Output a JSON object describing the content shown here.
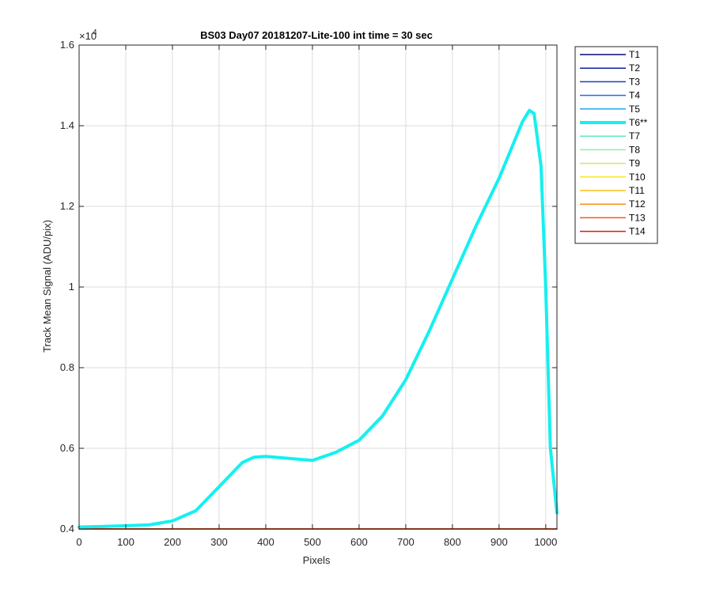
{
  "chart_data": {
    "type": "line",
    "title": "BS03 Day07 20181207-Lite-100 int time = 30 sec",
    "xlabel": "Pixels",
    "ylabel": "Track Mean Signal (ADU/pix)",
    "xlim": [
      0,
      1024
    ],
    "ylim": [
      4000,
      16000
    ],
    "xticks": [
      0,
      100,
      200,
      300,
      400,
      500,
      600,
      700,
      800,
      900,
      1000
    ],
    "xtick_labels": [
      "0",
      "100",
      "200",
      "300",
      "400",
      "500",
      "600",
      "700",
      "800",
      "900",
      "1000"
    ],
    "yticks": [
      4000,
      6000,
      8000,
      10000,
      12000,
      14000,
      16000
    ],
    "ytick_labels": [
      "0.4",
      "0.6",
      "0.8",
      "1",
      "1.2",
      "1.4",
      "1.6"
    ],
    "y_exponent": "×10",
    "y_exponent_power": "4",
    "grid": true,
    "legend_position": "outside-right-top",
    "series": [
      {
        "name": "T1",
        "color": "#0a0a7a",
        "width": 1.5,
        "x": [
          0,
          1024
        ],
        "y": [
          4000,
          4000
        ]
      },
      {
        "name": "T2",
        "color": "#0f1fa0",
        "width": 1.5,
        "x": [
          0,
          1024
        ],
        "y": [
          4000,
          4000
        ]
      },
      {
        "name": "T3",
        "color": "#1a3ec8",
        "width": 1.5,
        "x": [
          0,
          1024
        ],
        "y": [
          4000,
          4000
        ]
      },
      {
        "name": "T4",
        "color": "#1c6fe0",
        "width": 1.5,
        "x": [
          0,
          1024
        ],
        "y": [
          4000,
          4000
        ]
      },
      {
        "name": "T5",
        "color": "#24a7ee",
        "width": 1.5,
        "x": [
          0,
          1024
        ],
        "y": [
          4000,
          4000
        ]
      },
      {
        "name": "T6**",
        "color": "#15f0f0",
        "width": 4,
        "x": [
          0,
          50,
          100,
          150,
          200,
          250,
          300,
          350,
          375,
          400,
          450,
          500,
          550,
          600,
          650,
          700,
          750,
          800,
          850,
          900,
          950,
          965,
          975,
          990,
          1000,
          1010,
          1024
        ],
        "y": [
          4050,
          4060,
          4080,
          4100,
          4200,
          4450,
          5050,
          5650,
          5780,
          5800,
          5750,
          5700,
          5900,
          6200,
          6800,
          7700,
          8900,
          10200,
          11500,
          12700,
          14100,
          14380,
          14300,
          13000,
          10000,
          6000,
          4400
        ]
      },
      {
        "name": "T7",
        "color": "#5ee8c0",
        "width": 1.5,
        "x": [
          0,
          1024
        ],
        "y": [
          4000,
          4000
        ]
      },
      {
        "name": "T8",
        "color": "#8ef09a",
        "width": 1.5,
        "x": [
          0,
          1024
        ],
        "y": [
          4000,
          4000
        ]
      },
      {
        "name": "T9",
        "color": "#c2f060",
        "width": 1.5,
        "x": [
          0,
          1024
        ],
        "y": [
          4000,
          4000
        ]
      },
      {
        "name": "T10",
        "color": "#f2ea2a",
        "width": 1.5,
        "x": [
          0,
          1024
        ],
        "y": [
          4000,
          4000
        ]
      },
      {
        "name": "T11",
        "color": "#f8c018",
        "width": 1.5,
        "x": [
          0,
          1024
        ],
        "y": [
          4000,
          4000
        ]
      },
      {
        "name": "T12",
        "color": "#f89018",
        "width": 1.5,
        "x": [
          0,
          1024
        ],
        "y": [
          4000,
          4000
        ]
      },
      {
        "name": "T13",
        "color": "#f45a14",
        "width": 1.5,
        "x": [
          0,
          1024
        ],
        "y": [
          4000,
          4000
        ]
      },
      {
        "name": "T14",
        "color": "#e01a10",
        "width": 1.5,
        "x": [
          0,
          1024
        ],
        "y": [
          4000,
          4000
        ]
      }
    ]
  }
}
